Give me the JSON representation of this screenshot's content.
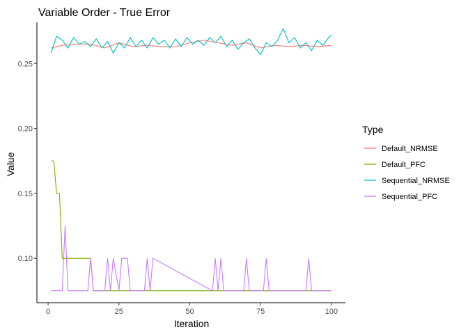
{
  "chart_data": {
    "type": "line",
    "title": "Variable Order - True Error",
    "xlabel": "Iteration",
    "ylabel": "Value",
    "xlim": [
      -3.95,
      104.95
    ],
    "ylim": [
      0.0658,
      0.2818
    ],
    "x_ticks": [
      0,
      25,
      50,
      75,
      100
    ],
    "y_ticks": [
      0.1,
      0.15,
      0.2,
      0.25
    ],
    "y_tick_labels": [
      "0.10",
      "0.15",
      "0.20",
      "0.25"
    ],
    "grid": false,
    "legend": {
      "title": "Type",
      "position": "right"
    },
    "colors": {
      "Default_NRMSE": "#F8766D",
      "Default_PFC": "#7CAE00",
      "Sequential_NRMSE": "#00BFC4",
      "Sequential_PFC": "#C77CFF"
    },
    "series": [
      {
        "name": "Default_NRMSE",
        "x": [
          1,
          5,
          10,
          15,
          20,
          25,
          30,
          35,
          40,
          45,
          50,
          55,
          60,
          65,
          70,
          75,
          80,
          85,
          90,
          95,
          100
        ],
        "y": [
          0.262,
          0.264,
          0.265,
          0.265,
          0.262,
          0.266,
          0.263,
          0.264,
          0.263,
          0.263,
          0.266,
          0.268,
          0.266,
          0.264,
          0.266,
          0.262,
          0.264,
          0.263,
          0.264,
          0.263,
          0.264
        ]
      },
      {
        "name": "Default_PFC",
        "x": [
          1,
          2,
          3,
          4,
          5,
          6,
          15,
          16,
          30,
          100
        ],
        "y": [
          0.175,
          0.175,
          0.15,
          0.15,
          0.1,
          0.1,
          0.1,
          0.075,
          0.075,
          0.075
        ]
      },
      {
        "name": "Sequential_NRMSE",
        "x": [
          1,
          3,
          5,
          7,
          9,
          11,
          13,
          15,
          17,
          19,
          21,
          23,
          25,
          27,
          29,
          31,
          33,
          35,
          37,
          39,
          41,
          43,
          45,
          47,
          49,
          51,
          53,
          55,
          57,
          59,
          61,
          63,
          65,
          67,
          69,
          71,
          73,
          75,
          77,
          79,
          81,
          83,
          85,
          87,
          89,
          91,
          93,
          95,
          97,
          99,
          100
        ],
        "y": [
          0.258,
          0.271,
          0.268,
          0.262,
          0.27,
          0.265,
          0.267,
          0.263,
          0.269,
          0.262,
          0.267,
          0.258,
          0.266,
          0.262,
          0.27,
          0.263,
          0.268,
          0.262,
          0.27,
          0.265,
          0.268,
          0.262,
          0.269,
          0.263,
          0.27,
          0.265,
          0.268,
          0.264,
          0.27,
          0.266,
          0.271,
          0.263,
          0.268,
          0.261,
          0.266,
          0.269,
          0.262,
          0.257,
          0.266,
          0.263,
          0.268,
          0.277,
          0.266,
          0.27,
          0.262,
          0.266,
          0.26,
          0.268,
          0.264,
          0.27,
          0.272
        ]
      },
      {
        "name": "Sequential_PFC",
        "x": [
          1,
          5,
          6,
          7,
          14,
          15,
          16,
          20,
          21,
          22,
          23,
          25,
          26,
          28,
          29,
          34,
          35,
          36,
          37,
          58,
          59,
          60,
          61,
          62,
          69,
          70,
          71,
          76,
          77,
          78,
          91,
          92,
          93,
          100
        ],
        "y": [
          0.075,
          0.075,
          0.125,
          0.075,
          0.075,
          0.1,
          0.075,
          0.075,
          0.1,
          0.075,
          0.1,
          0.075,
          0.1,
          0.1,
          0.075,
          0.075,
          0.1,
          0.075,
          0.1,
          0.075,
          0.1,
          0.075,
          0.1,
          0.075,
          0.075,
          0.1,
          0.075,
          0.075,
          0.1,
          0.075,
          0.075,
          0.1,
          0.075,
          0.075
        ]
      }
    ]
  }
}
